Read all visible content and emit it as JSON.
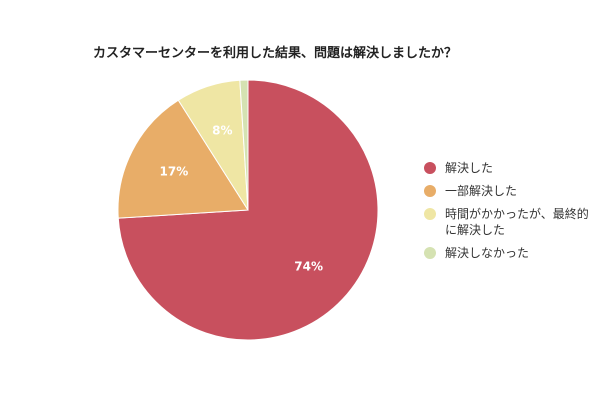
{
  "chart_data": {
    "type": "pie",
    "title": "カスタマーセンターを利用した結果、問題は解決しましたか？",
    "slices": [
      {
        "label": "解決した",
        "value": 74,
        "display": "74%",
        "color": "#c8505e"
      },
      {
        "label": "一部解決した",
        "value": 17,
        "display": "17%",
        "color": "#e8ad68"
      },
      {
        "label": "時間がかかったが、最終的に解決した",
        "value": 8,
        "display": "8%",
        "color": "#efe6a4"
      },
      {
        "label": "解決しなかった",
        "value": 1,
        "display": "",
        "color": "#d5e2b2"
      }
    ],
    "legend_position": "right"
  }
}
